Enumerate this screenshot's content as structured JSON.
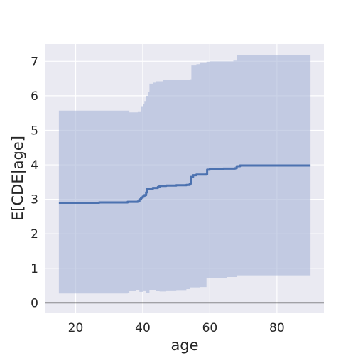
{
  "chart_data": {
    "type": "line",
    "xlabel": "age",
    "ylabel": "E[CDE|age]",
    "xlim": [
      11,
      94
    ],
    "ylim": [
      -0.3,
      7.5
    ],
    "xticks": [
      20,
      40,
      60,
      80
    ],
    "yticks": [
      0,
      1,
      2,
      3,
      4,
      5,
      6,
      7
    ],
    "grid": true,
    "reference_line_y": 0,
    "colors": {
      "background": "#EAEAF2",
      "grid": "#FFFFFF",
      "line": "#4C72B0",
      "band": "#A9B7D8",
      "reference_line": "#262626"
    },
    "series": [
      {
        "values_step": [
          [
            15,
            2.9
          ],
          [
            20,
            2.9
          ],
          [
            25,
            2.9
          ],
          [
            27,
            2.91
          ],
          [
            30,
            2.91
          ],
          [
            35,
            2.91
          ],
          [
            35.5,
            2.93
          ],
          [
            38.5,
            2.94
          ],
          [
            39,
            3.0
          ],
          [
            39.5,
            3.05
          ],
          [
            40,
            3.08
          ],
          [
            40.5,
            3.12
          ],
          [
            41,
            3.2
          ],
          [
            41.3,
            3.3
          ],
          [
            43,
            3.33
          ],
          [
            44.5,
            3.36
          ],
          [
            45,
            3.39
          ],
          [
            47,
            3.4
          ],
          [
            50,
            3.41
          ],
          [
            53,
            3.42
          ],
          [
            54,
            3.45
          ],
          [
            54.3,
            3.65
          ],
          [
            55,
            3.7
          ],
          [
            56,
            3.72
          ],
          [
            59,
            3.73
          ],
          [
            59.2,
            3.86
          ],
          [
            60,
            3.88
          ],
          [
            64,
            3.89
          ],
          [
            67.5,
            3.9
          ],
          [
            68,
            3.96
          ],
          [
            69,
            3.98
          ],
          [
            75,
            3.98
          ],
          [
            90,
            3.98
          ]
        ],
        "upper_step": [
          [
            15,
            5.57
          ],
          [
            35,
            5.57
          ],
          [
            36,
            5.52
          ],
          [
            38.5,
            5.55
          ],
          [
            39.5,
            5.7
          ],
          [
            40,
            5.75
          ],
          [
            40.5,
            5.85
          ],
          [
            41,
            6.0
          ],
          [
            41.5,
            6.1
          ],
          [
            42,
            6.35
          ],
          [
            43,
            6.38
          ],
          [
            44,
            6.42
          ],
          [
            46,
            6.45
          ],
          [
            50,
            6.47
          ],
          [
            52,
            6.47
          ],
          [
            54,
            6.48
          ],
          [
            54.5,
            6.88
          ],
          [
            56,
            6.92
          ],
          [
            57,
            6.97
          ],
          [
            59,
            6.99
          ],
          [
            60,
            7.0
          ],
          [
            64,
            7.0
          ],
          [
            67,
            7.02
          ],
          [
            68,
            7.18
          ],
          [
            90,
            7.18
          ]
        ],
        "lower_step": [
          [
            15,
            0.27
          ],
          [
            35,
            0.27
          ],
          [
            35.5,
            0.28
          ],
          [
            36,
            0.35
          ],
          [
            38,
            0.38
          ],
          [
            39,
            0.32
          ],
          [
            40,
            0.36
          ],
          [
            41,
            0.29
          ],
          [
            42,
            0.38
          ],
          [
            44,
            0.35
          ],
          [
            45,
            0.33
          ],
          [
            47,
            0.36
          ],
          [
            50,
            0.37
          ],
          [
            53,
            0.4
          ],
          [
            54,
            0.45
          ],
          [
            57,
            0.46
          ],
          [
            59,
            0.72
          ],
          [
            62,
            0.73
          ],
          [
            65,
            0.75
          ],
          [
            68,
            0.8
          ],
          [
            75,
            0.8
          ],
          [
            90,
            0.8
          ]
        ]
      }
    ]
  }
}
